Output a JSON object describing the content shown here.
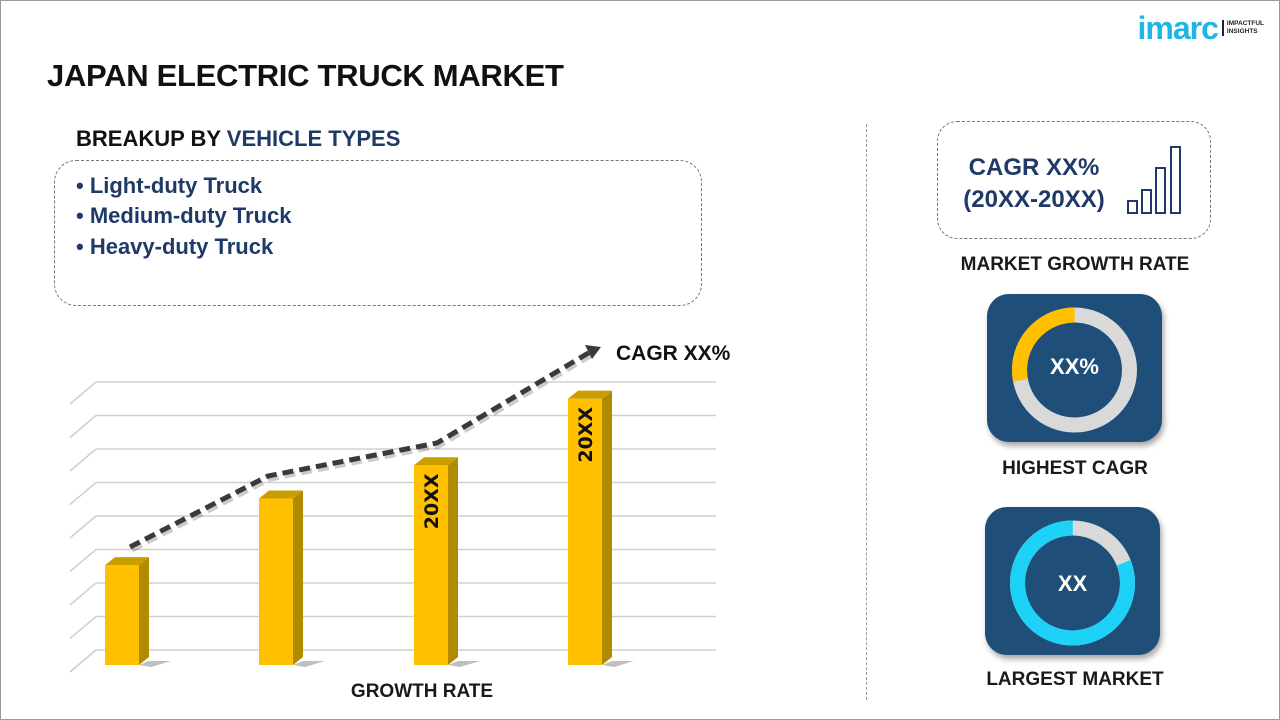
{
  "header": {
    "title": "JAPAN ELECTRIC TRUCK MARKET"
  },
  "logo": {
    "brand": "imarc",
    "tagline_1": "IMPACTFUL",
    "tagline_2": "INSIGHTS"
  },
  "breakup": {
    "prefix": "BREAKUP BY",
    "highlight": "VEHICLE TYPES",
    "items": [
      "• Light-duty Truck",
      "• Medium-duty Truck",
      "• Heavy-duty Truck"
    ]
  },
  "chart_data": {
    "type": "bar",
    "categories": [
      "",
      "",
      "",
      ""
    ],
    "values": [
      3,
      5,
      6,
      8
    ],
    "bar_labels": [
      "",
      "",
      "20XX",
      "20XX"
    ],
    "trend_annotation": "CAGR XX%",
    "xlabel": "GROWTH RATE",
    "ylabel": "",
    "ylim": [
      0,
      8.5
    ],
    "grid": true,
    "bar_color": "#ffc000"
  },
  "market_growth": {
    "line1": "CAGR XX%",
    "line2": "(20XX-20XX)",
    "label": "MARKET GROWTH RATE"
  },
  "highest_cagr": {
    "value": "XX%",
    "label": "HIGHEST CAGR",
    "fill_fraction": 0.28,
    "fill_color": "#ffc000"
  },
  "largest_market": {
    "value": "XX",
    "label": "LARGEST MARKET",
    "fill_fraction": 0.81,
    "fill_color": "#1ed2f7"
  },
  "colors": {
    "navy": "#1f3a68",
    "card": "#1f4e79",
    "track": "#d9d9d9",
    "brand": "#1fb6e6"
  }
}
